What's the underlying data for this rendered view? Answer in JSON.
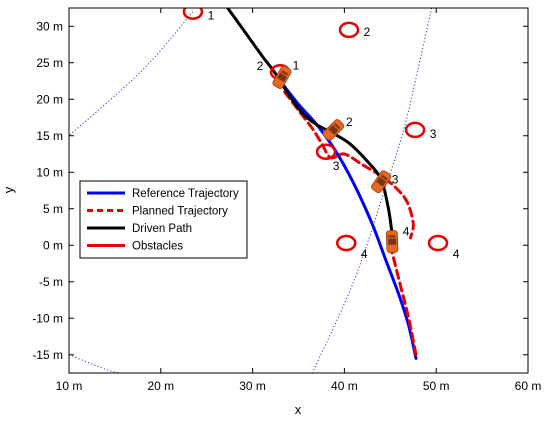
{
  "chart_data": {
    "type": "line",
    "xlabel": "x",
    "ylabel": "y",
    "xlim": [
      10,
      60
    ],
    "ylim": [
      -17.5,
      32.5
    ],
    "x_ticks": [
      10,
      20,
      30,
      40,
      50,
      60
    ],
    "y_ticks": [
      -15,
      -10,
      -5,
      0,
      5,
      10,
      15,
      20,
      25,
      30
    ],
    "x_tick_labels": [
      "10 m",
      "20 m",
      "30 m",
      "40 m",
      "50 m",
      "60 m"
    ],
    "y_tick_labels": [
      "-15 m",
      "-10 m",
      "-5 m",
      "0 m",
      "5 m",
      "10 m",
      "15 m",
      "20 m",
      "25 m",
      "30 m"
    ],
    "grid": false,
    "legend_placement": "center-left",
    "colors": {
      "reference": "#0000ff",
      "planned": "#e60000",
      "driven": "#000000",
      "obstacles": "#e60000",
      "sensor": "#3333dd",
      "car": "#e8661e"
    },
    "series": [
      {
        "name": "Reference Trajectory",
        "style": "solid",
        "x": [
          33.0,
          35.0,
          37.0,
          39.0,
          41.0,
          43.0,
          44.5,
          46.0,
          47.0,
          47.8
        ],
        "y": [
          22.5,
          19.3,
          16.5,
          13.0,
          8.5,
          3.0,
          -2.0,
          -7.0,
          -11.0,
          -15.5
        ]
      },
      {
        "name": "Planned Trajectory",
        "style": "dashed",
        "x": [
          33.5,
          35.0,
          36.5,
          37.5,
          38.5,
          40.0,
          42.0,
          44.0,
          45.5,
          46.8,
          47.5,
          47.2
        ],
        "y": [
          21.0,
          18.5,
          16.0,
          14.0,
          12.0,
          12.5,
          11.0,
          9.5,
          8.0,
          6.0,
          3.0,
          1.0
        ]
      },
      {
        "name": "Planned Trajectory",
        "style": "dashed",
        "x": [
          45.0,
          46.0,
          47.0,
          47.8
        ],
        "y": [
          0.0,
          -5.0,
          -10.0,
          -15.0
        ]
      },
      {
        "name": "Driven Path",
        "style": "solid",
        "x": [
          27.0,
          29.0,
          31.0,
          32.5,
          34.0,
          35.5,
          37.0,
          38.5,
          40.5,
          42.5,
          44.0,
          44.8,
          45.2
        ],
        "y": [
          33.0,
          29.5,
          26.0,
          23.5,
          20.5,
          18.0,
          16.5,
          15.5,
          14.0,
          11.5,
          9.0,
          5.0,
          1.5
        ]
      }
    ],
    "obstacles": [
      {
        "x": 23.5,
        "y": 32.0,
        "label": "1"
      },
      {
        "x": 33.0,
        "y": 23.7,
        "label": "2"
      },
      {
        "x": 40.5,
        "y": 29.5,
        "label": "2"
      },
      {
        "x": 38.0,
        "y": 12.8,
        "label": "3"
      },
      {
        "x": 47.7,
        "y": 15.8,
        "label": "3"
      },
      {
        "x": 40.2,
        "y": 0.3,
        "label": "4"
      },
      {
        "x": 50.2,
        "y": 0.3,
        "label": "4"
      }
    ],
    "vehicles": [
      {
        "x": 33.2,
        "y": 23.0,
        "angle_deg": -60,
        "label": "1"
      },
      {
        "x": 38.8,
        "y": 15.8,
        "angle_deg": -45,
        "label": "2"
      },
      {
        "x": 44.0,
        "y": 8.7,
        "angle_deg": -55,
        "label": "3"
      },
      {
        "x": 45.2,
        "y": 0.5,
        "angle_deg": -92,
        "label": "4"
      }
    ],
    "sensor_lines": [
      {
        "x": [
          23.5,
          18.0,
          10.0
        ],
        "y": [
          32.0,
          24.0,
          15.0
        ]
      },
      {
        "x": [
          49.5,
          48.0,
          46.5,
          44.5,
          41.0,
          36.5
        ],
        "y": [
          32.5,
          24.0,
          16.0,
          8.0,
          -5.0,
          -17.5
        ]
      },
      {
        "x": [
          10.0,
          14.0,
          15.5
        ],
        "y": [
          -15.0,
          -17.0,
          -17.5
        ]
      }
    ],
    "legend": [
      "Reference Trajectory",
      "Planned Trajectory",
      "Driven Path",
      "Obstacles"
    ]
  }
}
